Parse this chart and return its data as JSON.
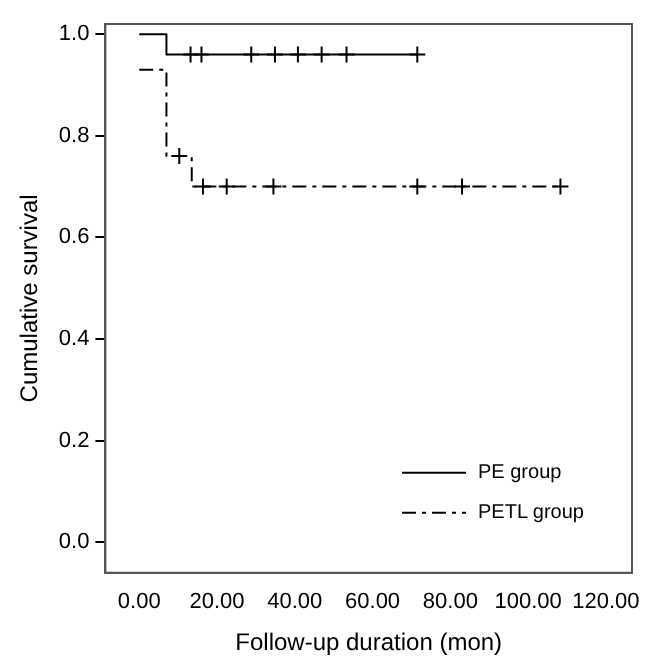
{
  "chart_data": {
    "type": "step",
    "xlabel": "Follow-up duration (mon)",
    "ylabel": "Cumulative survival",
    "xlim": [
      -8.7,
      126.7
    ],
    "xticks": [
      {
        "value": 0,
        "label": "0.00"
      },
      {
        "value": 20,
        "label": "20.00"
      },
      {
        "value": 40,
        "label": "40.00"
      },
      {
        "value": 60,
        "label": "60.00"
      },
      {
        "value": 80,
        "label": "80.00"
      },
      {
        "value": 100,
        "label": "100.00"
      },
      {
        "value": 120,
        "label": "120.00"
      }
    ],
    "ylim": [
      -0.06,
      1.02
    ],
    "yticks": [
      {
        "value": 0,
        "label": "0.0"
      },
      {
        "value": 0.2,
        "label": "0.2"
      },
      {
        "value": 0.4,
        "label": "0.4"
      },
      {
        "value": 0.6,
        "label": "0.6"
      },
      {
        "value": 0.8,
        "label": "0.8"
      },
      {
        "value": 1,
        "label": "1.0"
      }
    ],
    "grid": false,
    "legend": "bottom right",
    "series": [
      {
        "name": "PE group",
        "color": "#000000",
        "line_style": "solid",
        "marker": "none",
        "x": [
          0,
          7,
          71.5
        ],
        "values": [
          1,
          0.96,
          0.96
        ]
      },
      {
        "name": "PETL group",
        "color": "#000000",
        "line_style": "dashed",
        "marker": "none",
        "x": [
          0,
          7,
          13.5,
          108.3
        ],
        "values": [
          0.93,
          0.76,
          0.7,
          0.7
        ]
      },
      {
        "type": "scatter",
        "color": "#000000",
        "marker": "cross",
        "x": [
          13.2,
          16,
          28.8,
          34.9,
          40.8,
          46.9,
          53.3,
          71.5
        ],
        "values": [
          0.96,
          0.96,
          0.96,
          0.96,
          0.96,
          0.96,
          0.96,
          0.96
        ]
      },
      {
        "type": "scatter",
        "color": "#000000",
        "marker": "cross",
        "x": [
          10.3,
          16.4,
          22.5,
          34.5,
          71.5,
          83,
          108.3
        ],
        "values": [
          0.76,
          0.7,
          0.7,
          0.7,
          0.7,
          0.7,
          0.7
        ]
      }
    ]
  }
}
